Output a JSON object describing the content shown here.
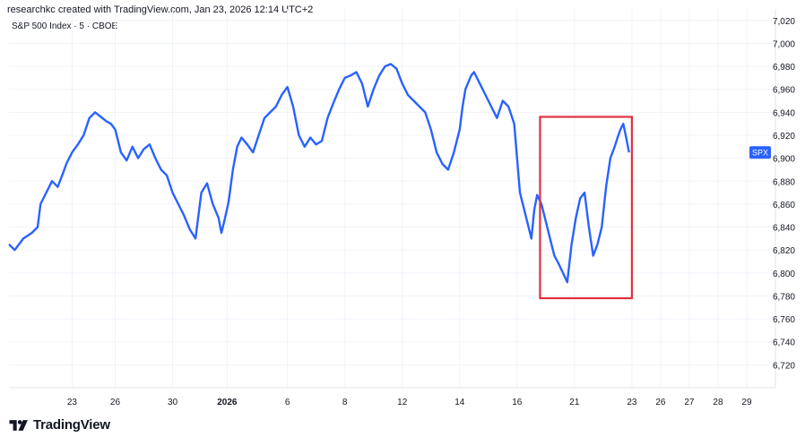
{
  "header": {
    "attribution": "researchkc created with TradingView.com, Jan 23, 2026 12:14 UTC+2",
    "symbol": "S&P 500 Index · 5 · CBOE"
  },
  "footer": {
    "brand": "TradingView",
    "logo_icon": "tradingview-logo-icon"
  },
  "colors": {
    "line": "#2962ff",
    "highlight": "#e03140",
    "grid": "#f0f3fa",
    "axis_text": "#131722",
    "tag_bg": "#2962ff"
  },
  "chart_data": {
    "type": "line",
    "title": "S&P 500 Index · 5 · CBOE",
    "xlabel": "",
    "ylabel": "",
    "price_tag": "SPX",
    "ylim": [
      6700,
      7030
    ],
    "y_ticks": [
      6720,
      6740,
      6760,
      6780,
      6800,
      6820,
      6840,
      6860,
      6880,
      6900,
      6920,
      6940,
      6960,
      6980,
      7000,
      7020
    ],
    "y_tick_labels": [
      "6,720",
      "6,740",
      "6,760",
      "6,780",
      "6,800",
      "6,820",
      "6,840",
      "6,860",
      "6,880",
      "6,900",
      "6,920",
      "6,940",
      "6,960",
      "6,980",
      "7,000",
      "7,020"
    ],
    "x_ticks": [
      {
        "t": 2.0,
        "label": "23",
        "bold": false
      },
      {
        "t": 3.5,
        "label": "26",
        "bold": false
      },
      {
        "t": 5.5,
        "label": "30",
        "bold": false
      },
      {
        "t": 7.4,
        "label": "2026",
        "bold": true
      },
      {
        "t": 9.5,
        "label": "6",
        "bold": false
      },
      {
        "t": 11.5,
        "label": "8",
        "bold": false
      },
      {
        "t": 13.5,
        "label": "12",
        "bold": false
      },
      {
        "t": 15.5,
        "label": "14",
        "bold": false
      },
      {
        "t": 17.5,
        "label": "16",
        "bold": false
      },
      {
        "t": 19.5,
        "label": "21",
        "bold": false
      },
      {
        "t": 21.5,
        "label": "23",
        "bold": false
      },
      {
        "t": 22.5,
        "label": "26",
        "bold": false
      },
      {
        "t": 23.5,
        "label": "27",
        "bold": false
      },
      {
        "t": 24.5,
        "label": "28",
        "bold": false
      },
      {
        "t": 25.5,
        "label": "29",
        "bold": false
      }
    ],
    "xlim": [
      -0.2,
      26.5
    ],
    "series": [
      {
        "name": "SPX",
        "x": [
          -0.2,
          0.0,
          0.3,
          0.6,
          0.8,
          0.9,
          1.1,
          1.3,
          1.5,
          1.7,
          1.8,
          2.0,
          2.2,
          2.4,
          2.6,
          2.8,
          3.0,
          3.2,
          3.35,
          3.5,
          3.7,
          3.9,
          4.1,
          4.3,
          4.5,
          4.7,
          4.9,
          5.1,
          5.3,
          5.5,
          5.7,
          5.9,
          6.1,
          6.3,
          6.5,
          6.7,
          6.9,
          7.1,
          7.2,
          7.3,
          7.45,
          7.6,
          7.75,
          7.9,
          8.1,
          8.3,
          8.5,
          8.7,
          8.9,
          9.1,
          9.3,
          9.5,
          9.7,
          9.9,
          10.1,
          10.3,
          10.5,
          10.7,
          10.9,
          11.1,
          11.3,
          11.5,
          11.7,
          11.9,
          12.1,
          12.3,
          12.5,
          12.7,
          12.9,
          13.1,
          13.3,
          13.5,
          13.7,
          13.9,
          14.1,
          14.3,
          14.5,
          14.7,
          14.9,
          15.1,
          15.3,
          15.5,
          15.6,
          15.7,
          15.9,
          16.0,
          16.2,
          16.4,
          16.6,
          16.8,
          17.0,
          17.2,
          17.4,
          17.6,
          17.8,
          18.0,
          18.1,
          18.2,
          18.35,
          18.5,
          18.65,
          18.8,
          18.95,
          19.1,
          19.25,
          19.4,
          19.55,
          19.7,
          19.85,
          20.0,
          20.15,
          20.3,
          20.45,
          20.6,
          20.75,
          20.9,
          21.0,
          21.1,
          21.2,
          21.3,
          21.4
        ],
        "values": [
          6825,
          6820,
          6830,
          6835,
          6840,
          6860,
          6870,
          6880,
          6875,
          6888,
          6895,
          6905,
          6912,
          6920,
          6935,
          6940,
          6936,
          6932,
          6930,
          6925,
          6905,
          6898,
          6910,
          6900,
          6908,
          6912,
          6900,
          6890,
          6885,
          6870,
          6860,
          6850,
          6838,
          6830,
          6870,
          6878,
          6860,
          6848,
          6835,
          6845,
          6862,
          6890,
          6910,
          6918,
          6912,
          6905,
          6920,
          6935,
          6940,
          6945,
          6955,
          6962,
          6945,
          6920,
          6910,
          6918,
          6912,
          6915,
          6935,
          6948,
          6960,
          6970,
          6972,
          6975,
          6965,
          6945,
          6960,
          6972,
          6980,
          6982,
          6978,
          6965,
          6955,
          6950,
          6945,
          6940,
          6925,
          6905,
          6895,
          6890,
          6905,
          6925,
          6945,
          6960,
          6972,
          6975,
          6965,
          6955,
          6945,
          6935,
          6950,
          6945,
          6930,
          6870,
          6850,
          6830,
          6855,
          6868,
          6860,
          6845,
          6830,
          6815,
          6808,
          6800,
          6792,
          6825,
          6848,
          6865,
          6870,
          6840,
          6815,
          6825,
          6840,
          6875,
          6900,
          6910,
          6918,
          6925,
          6930,
          6918,
          6905
        ]
      }
    ]
  },
  "annotation": {
    "type": "highlight-rectangle",
    "x_range": [
      18.3,
      21.5
    ],
    "y_range": [
      6778,
      6936
    ]
  }
}
